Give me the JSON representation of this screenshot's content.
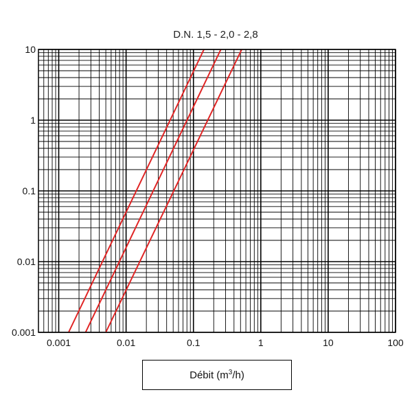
{
  "chart_data": {
    "type": "line",
    "title": "D.N. 1,5 - 2,0 - 2,8",
    "xlabel": {
      "prefix": "Débit (m",
      "sup": "3",
      "suffix": "/h)"
    },
    "ylabel": "",
    "xscale": "log",
    "yscale": "log",
    "xlim": [
      0.0005,
      100
    ],
    "ylim": [
      0.001,
      10
    ],
    "grid": true,
    "x_ticks": [
      {
        "value": 0.001,
        "label": "0.001"
      },
      {
        "value": 0.01,
        "label": "0.01"
      },
      {
        "value": 0.1,
        "label": "0.1"
      },
      {
        "value": 1,
        "label": "1"
      },
      {
        "value": 10,
        "label": "10"
      },
      {
        "value": 100,
        "label": "100"
      }
    ],
    "y_ticks": [
      {
        "value": 0.001,
        "label": "0.001"
      },
      {
        "value": 0.01,
        "label": "0.01"
      },
      {
        "value": 0.1,
        "label": "0.1"
      },
      {
        "value": 1,
        "label": "1"
      },
      {
        "value": 10,
        "label": "10"
      }
    ],
    "series": [
      {
        "color": "#e02424",
        "points": [
          [
            0.0014,
            0.001
          ],
          [
            0.143,
            10
          ]
        ]
      },
      {
        "color": "#e02424",
        "points": [
          [
            0.0025,
            0.001
          ],
          [
            0.255,
            10
          ]
        ]
      },
      {
        "color": "#e02424",
        "points": [
          [
            0.005,
            0.001
          ],
          [
            0.52,
            10
          ]
        ]
      }
    ]
  }
}
